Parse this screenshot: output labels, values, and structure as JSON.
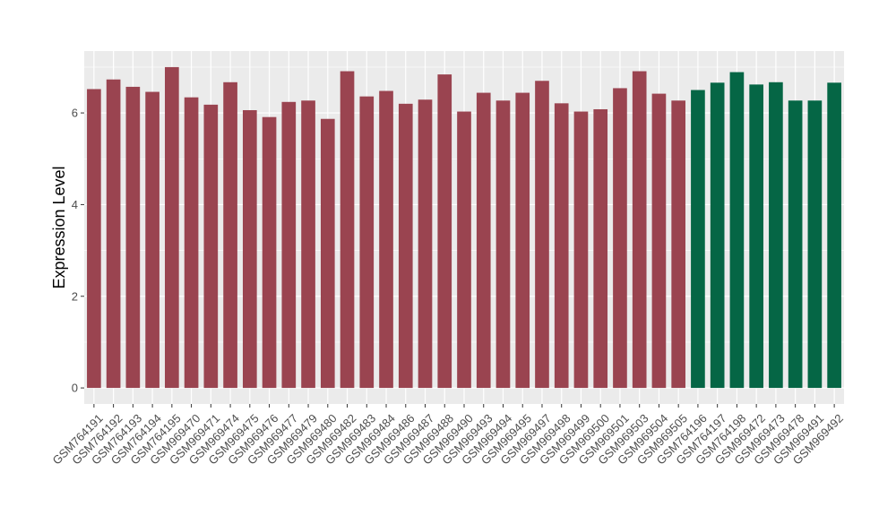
{
  "chart_data": {
    "type": "bar",
    "title": "",
    "xlabel": "",
    "ylabel": "Expression Level",
    "ylim": [
      -0.35,
      7.35
    ],
    "yticks": [
      0,
      2,
      4,
      6
    ],
    "grid": true,
    "legend": "none",
    "colors": {
      "group1": "#9a4450",
      "group2": "#056645",
      "panel": "#ebebeb",
      "gridline": "#ffffff",
      "axis_text": "#4d4d4d"
    },
    "categories": [
      "GSM764191",
      "GSM764192",
      "GSM764193",
      "GSM764194",
      "GSM764195",
      "GSM969470",
      "GSM969471",
      "GSM969474",
      "GSM969475",
      "GSM969476",
      "GSM969477",
      "GSM969479",
      "GSM969480",
      "GSM969482",
      "GSM969483",
      "GSM969484",
      "GSM969486",
      "GSM969487",
      "GSM969488",
      "GSM969490",
      "GSM969493",
      "GSM969494",
      "GSM969495",
      "GSM969497",
      "GSM969498",
      "GSM969499",
      "GSM969500",
      "GSM969501",
      "GSM969503",
      "GSM969504",
      "GSM969505",
      "GSM764196",
      "GSM764197",
      "GSM764198",
      "GSM969472",
      "GSM969473",
      "GSM969478",
      "GSM969491",
      "GSM969492"
    ],
    "values": [
      6.52,
      6.73,
      6.57,
      6.46,
      7.0,
      6.34,
      6.18,
      6.67,
      6.06,
      5.91,
      6.24,
      6.27,
      5.87,
      6.91,
      6.36,
      6.48,
      6.2,
      6.29,
      6.84,
      6.03,
      6.44,
      6.27,
      6.44,
      6.7,
      6.21,
      6.03,
      6.08,
      6.54,
      6.91,
      6.42,
      6.27,
      6.5,
      6.66,
      6.89,
      6.62,
      6.67,
      6.27,
      6.27,
      6.66
    ],
    "groups": [
      1,
      1,
      1,
      1,
      1,
      1,
      1,
      1,
      1,
      1,
      1,
      1,
      1,
      1,
      1,
      1,
      1,
      1,
      1,
      1,
      1,
      1,
      1,
      1,
      1,
      1,
      1,
      1,
      1,
      1,
      1,
      2,
      2,
      2,
      2,
      2,
      2,
      2,
      2
    ]
  }
}
